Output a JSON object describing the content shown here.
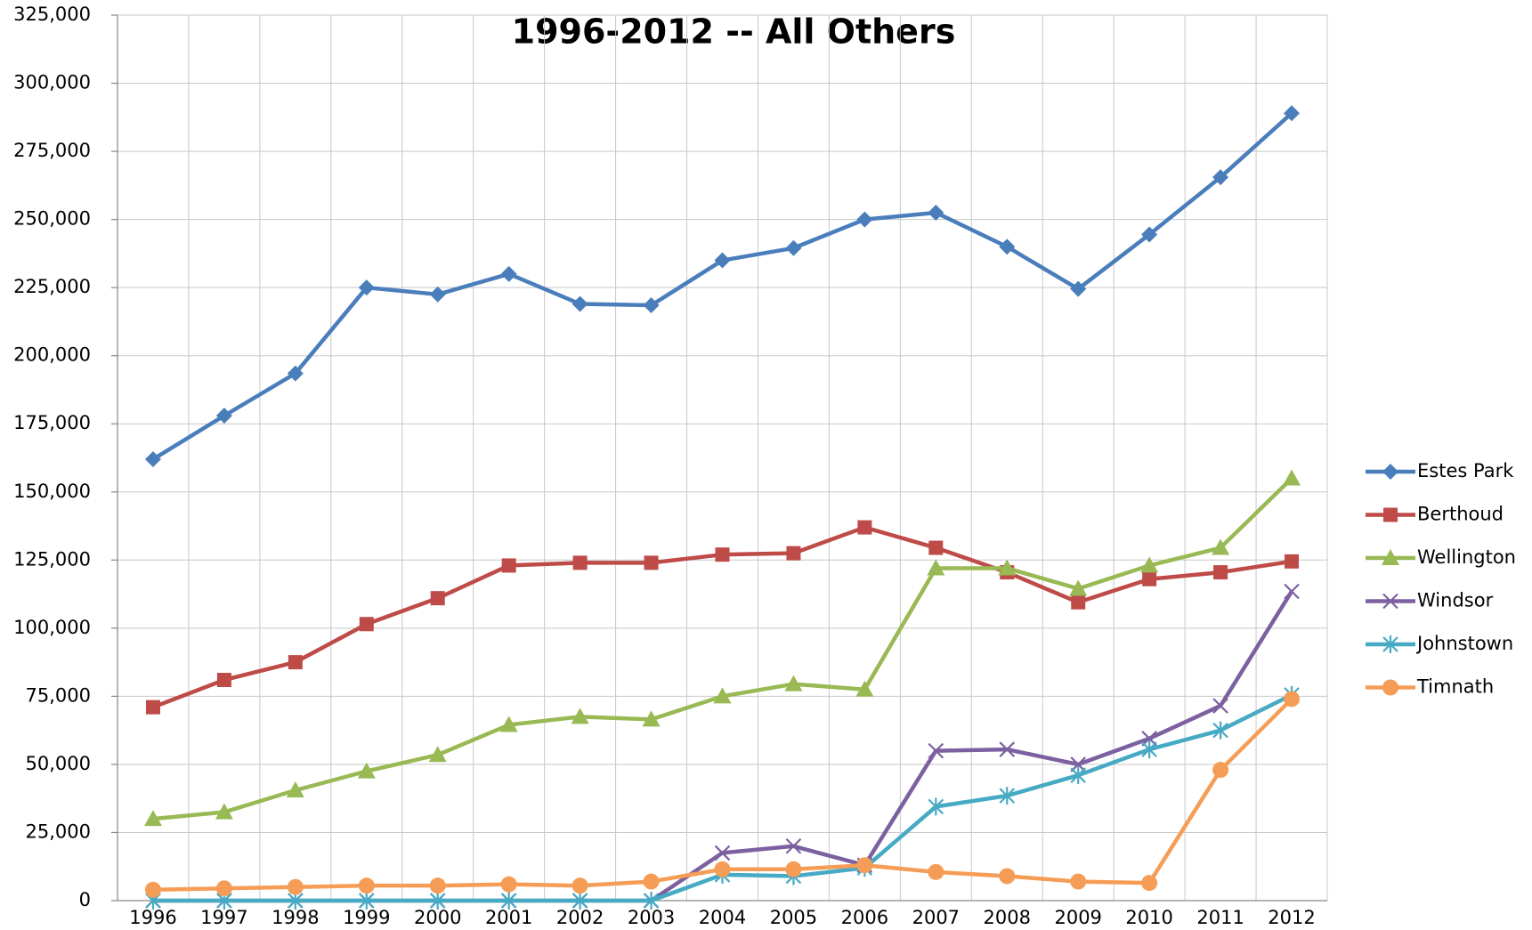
{
  "chart_data": {
    "type": "line",
    "title": "1996-2012 -- All Others",
    "categories": [
      "1996",
      "1997",
      "1998",
      "1999",
      "2000",
      "2001",
      "2002",
      "2003",
      "2004",
      "2005",
      "2006",
      "2007",
      "2008",
      "2009",
      "2010",
      "2011",
      "2012"
    ],
    "ylim": [
      0,
      325000
    ],
    "yticks": [
      0,
      {
        "value": 25000,
        "label": "25,000"
      },
      {
        "value": 50000,
        "label": "50,000"
      },
      {
        "value": 75000,
        "label": "75,000"
      },
      {
        "value": 100000,
        "label": "100,000"
      },
      {
        "value": 125000,
        "label": "125,000"
      },
      {
        "value": 150000,
        "label": "150,000"
      },
      {
        "value": 175000,
        "label": "175,000"
      },
      {
        "value": 200000,
        "label": "200,000"
      },
      {
        "value": 225000,
        "label": "225,000"
      },
      {
        "value": 250000,
        "label": "250,000"
      },
      {
        "value": 275000,
        "label": "275,000"
      },
      {
        "value": 300000,
        "label": "300,000"
      },
      {
        "value": 325000,
        "label": "325,000"
      }
    ],
    "grid": true,
    "legend": "right",
    "series": [
      {
        "name": "Estes Park",
        "color": "#4a7ebb",
        "marker": "diamond",
        "values": [
          162000,
          178000,
          193500,
          225000,
          222500,
          230000,
          219000,
          218500,
          235000,
          239500,
          250000,
          252500,
          240000,
          224500,
          244500,
          265500,
          289000
        ]
      },
      {
        "name": "Berthoud",
        "color": "#be4b48",
        "marker": "square",
        "values": [
          71000,
          81000,
          87500,
          101500,
          111000,
          123000,
          124000,
          124000,
          127000,
          127500,
          137000,
          129500,
          120500,
          109500,
          118000,
          120500,
          124500
        ]
      },
      {
        "name": "Wellington",
        "color": "#98b954",
        "marker": "triangle",
        "values": [
          30000,
          32500,
          40500,
          47500,
          53500,
          64500,
          67500,
          66500,
          75000,
          79500,
          77500,
          122000,
          122000,
          114500,
          123000,
          129500,
          155000
        ]
      },
      {
        "name": "Windsor",
        "color": "#7d60a0",
        "marker": "x",
        "values": [
          0,
          0,
          0,
          0,
          0,
          0,
          0,
          0,
          17500,
          20000,
          13000,
          55000,
          55500,
          50000,
          59500,
          71500,
          113500
        ]
      },
      {
        "name": "Johnstown",
        "color": "#46aac5",
        "marker": "asterisk",
        "values": [
          0,
          0,
          0,
          0,
          0,
          0,
          0,
          0,
          9500,
          9000,
          12000,
          34500,
          38500,
          46000,
          55500,
          62500,
          75500
        ]
      },
      {
        "name": "Timnath",
        "color": "#f59d56",
        "marker": "circle",
        "values": [
          4000,
          4500,
          5000,
          5500,
          5500,
          6000,
          5500,
          7000,
          11500,
          11500,
          13000,
          10500,
          9000,
          7000,
          6500,
          48000,
          74000
        ]
      }
    ]
  }
}
